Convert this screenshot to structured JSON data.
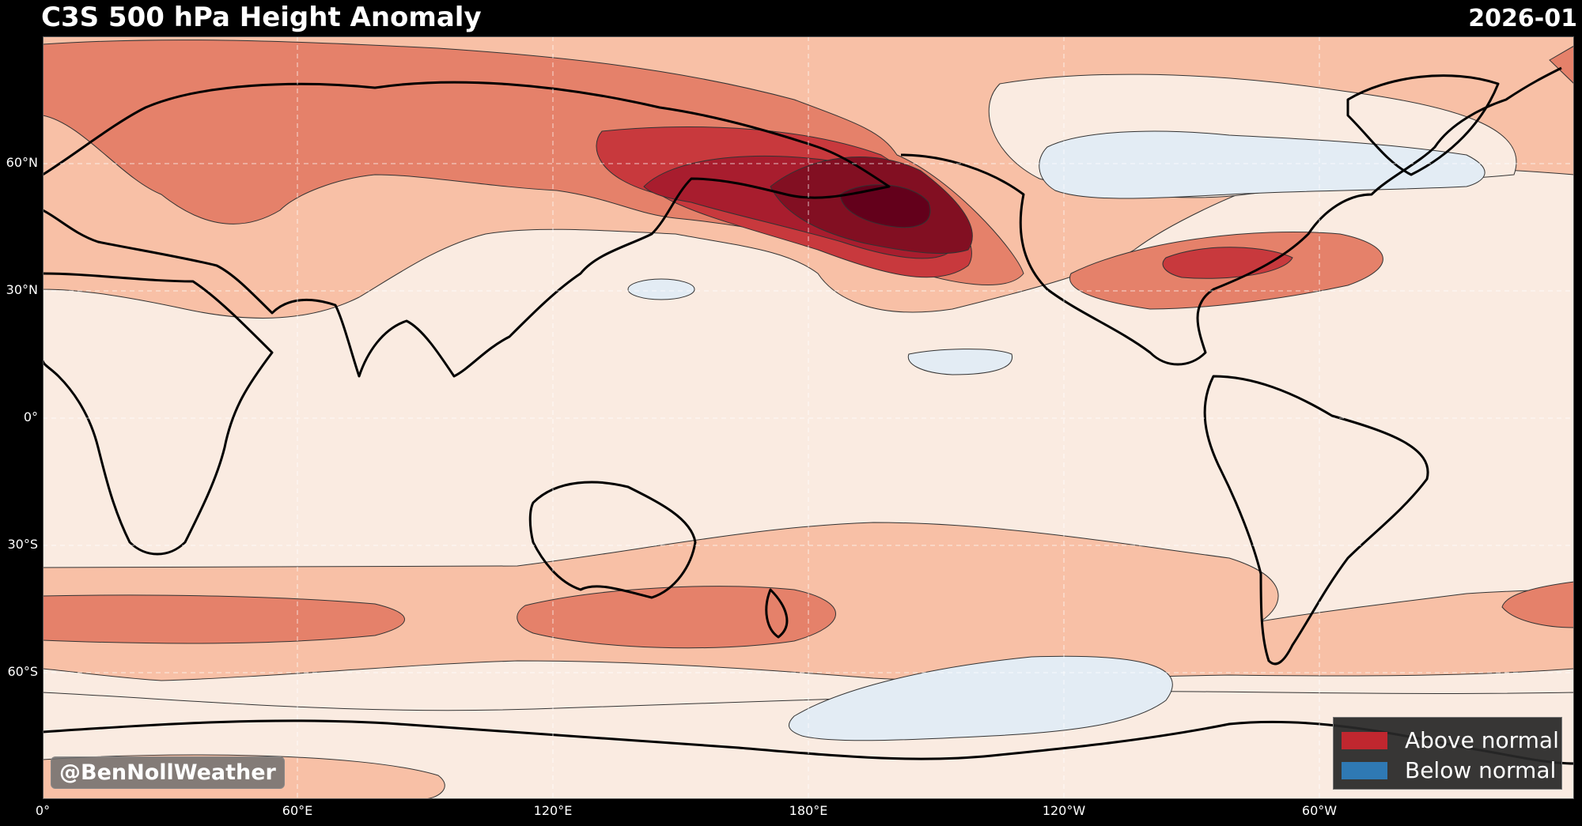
{
  "title": "C3S 500 hPa Height Anomaly",
  "date": "2026-01",
  "credit": "@BenNollWeather",
  "colors": {
    "background": "#000000",
    "ocean_base": "#faebe1",
    "level1": "#f8c0a6",
    "level2": "#e5816a",
    "level3": "#c8393d",
    "level4": "#a81d2e",
    "level5": "#820f22",
    "level6": "#63001b",
    "below": "#e3ecf4",
    "legend_above": "#c0272f",
    "legend_below": "#2f79b4"
  },
  "legend": {
    "items": [
      {
        "label": "Above normal",
        "color": "#c0272f",
        "icon": "red-swatch"
      },
      {
        "label": "Below normal",
        "color": "#2f79b4",
        "icon": "blue-swatch"
      }
    ]
  },
  "axes": {
    "lat_labels": [
      "60°N",
      "30°N",
      "0°",
      "30°S",
      "60°S"
    ],
    "lon_labels": [
      "0°",
      "60°E",
      "120°E",
      "180°E",
      "120°W",
      "60°W"
    ]
  }
}
